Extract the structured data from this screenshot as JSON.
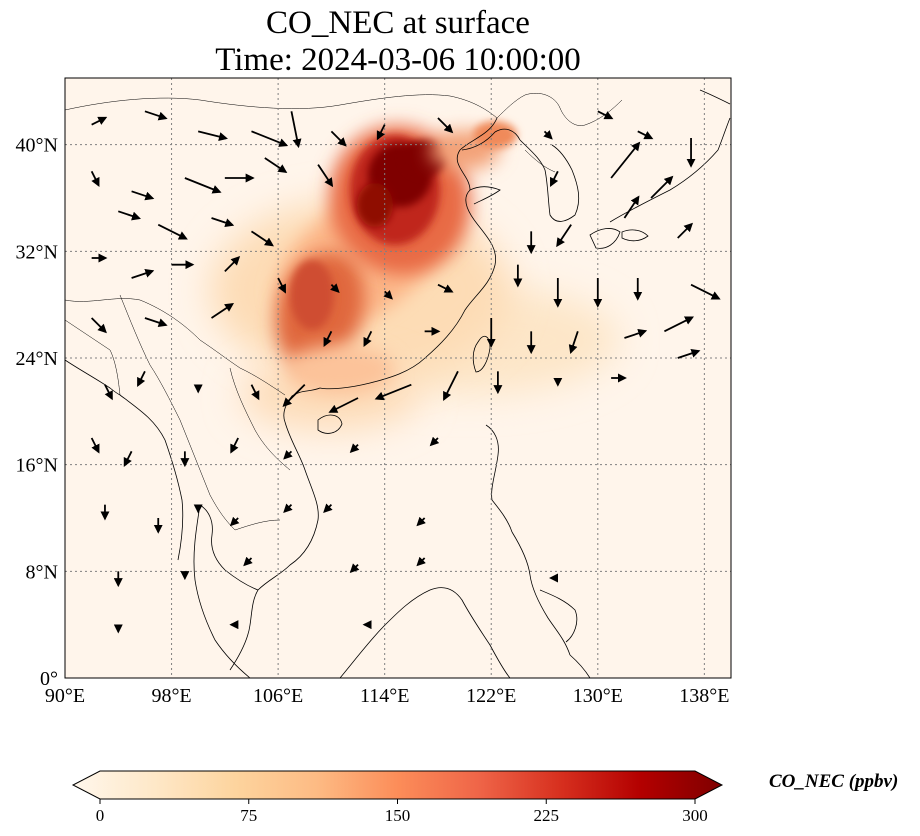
{
  "title": {
    "line1": "CO_NEC at surface",
    "line2": "Time: 2024-03-06 10:00:00"
  },
  "map": {
    "lon_range": [
      90,
      140
    ],
    "lat_range": [
      0,
      45
    ],
    "x_ticks": [
      {
        "value": 90,
        "label": "90°E"
      },
      {
        "value": 98,
        "label": "98°E"
      },
      {
        "value": 106,
        "label": "106°E"
      },
      {
        "value": 114,
        "label": "114°E"
      },
      {
        "value": 122,
        "label": "122°E"
      },
      {
        "value": 130,
        "label": "130°E"
      },
      {
        "value": 138,
        "label": "138°E"
      }
    ],
    "y_ticks": [
      {
        "value": 0,
        "label": "0°"
      },
      {
        "value": 8,
        "label": "8°N"
      },
      {
        "value": 16,
        "label": "16°N"
      },
      {
        "value": 24,
        "label": "24°N"
      },
      {
        "value": 32,
        "label": "32°N"
      },
      {
        "value": 40,
        "label": "40°N"
      }
    ],
    "gridlines": true,
    "background_color": "#fff5eb",
    "coastline_color": "#000000"
  },
  "colorbar": {
    "label": "CO_NEC (ppbv)",
    "min": 0,
    "max": 300,
    "ticks": [
      {
        "value": 0,
        "label": "0"
      },
      {
        "value": 75,
        "label": "75"
      },
      {
        "value": 150,
        "label": "150"
      },
      {
        "value": 225,
        "label": "225"
      },
      {
        "value": 300,
        "label": "300"
      }
    ],
    "colormap": "OrRd",
    "colors": [
      "#fff7ec",
      "#fee8c8",
      "#fdd49e",
      "#fdbb84",
      "#fc8d59",
      "#ef6548",
      "#d7301f",
      "#b30000",
      "#7f0000"
    ],
    "extend": "both"
  },
  "concentration_regions": [
    {
      "name": "north-china-plain-core",
      "lon": 115.5,
      "lat": 37.8,
      "value": 300
    },
    {
      "name": "north-china-plain-outer",
      "lon": 115,
      "lat": 37,
      "value": 220
    },
    {
      "name": "central-china-band",
      "lon": 112,
      "lat": 32,
      "value": 150
    },
    {
      "name": "sichuan-hunan",
      "lon": 109,
      "lat": 28.5,
      "value": 190
    },
    {
      "name": "south-china",
      "lon": 109,
      "lat": 23.5,
      "value": 90
    },
    {
      "name": "east-china-sea-plume",
      "lon": 126,
      "lat": 26,
      "value": 50
    },
    {
      "name": "bohai-coast",
      "lon": 120,
      "lat": 40.5,
      "value": 130
    }
  ],
  "wind_vectors": [
    {
      "lon": 92,
      "lat": 41.5,
      "u": 2,
      "v": 1
    },
    {
      "lon": 96,
      "lat": 42.5,
      "u": 3,
      "v": -1
    },
    {
      "lon": 100,
      "lat": 41,
      "u": 4,
      "v": -1
    },
    {
      "lon": 104,
      "lat": 41,
      "u": 5,
      "v": -2
    },
    {
      "lon": 107,
      "lat": 42.5,
      "u": 1,
      "v": -5
    },
    {
      "lon": 110,
      "lat": 41,
      "u": 2,
      "v": -2
    },
    {
      "lon": 114,
      "lat": 41.5,
      "u": -1,
      "v": -2
    },
    {
      "lon": 118,
      "lat": 42,
      "u": 2,
      "v": -2
    },
    {
      "lon": 126,
      "lat": 41,
      "u": 1,
      "v": -1
    },
    {
      "lon": 130,
      "lat": 42.5,
      "u": 2,
      "v": -1
    },
    {
      "lon": 133,
      "lat": 41,
      "u": 2,
      "v": -1
    },
    {
      "lon": 137,
      "lat": 40.5,
      "u": 0,
      "v": -4
    },
    {
      "lon": 92,
      "lat": 38,
      "u": 1,
      "v": -2
    },
    {
      "lon": 95,
      "lat": 36.5,
      "u": 3,
      "v": -1
    },
    {
      "lon": 99,
      "lat": 37.5,
      "u": 5,
      "v": -2
    },
    {
      "lon": 102,
      "lat": 37.5,
      "u": 4,
      "v": 0
    },
    {
      "lon": 105,
      "lat": 39,
      "u": 3,
      "v": -2
    },
    {
      "lon": 109,
      "lat": 38.5,
      "u": 2,
      "v": -3
    },
    {
      "lon": 127,
      "lat": 38,
      "u": -1,
      "v": -2
    },
    {
      "lon": 131,
      "lat": 37.5,
      "u": 4,
      "v": 5
    },
    {
      "lon": 134,
      "lat": 36,
      "u": 3,
      "v": 3
    },
    {
      "lon": 94,
      "lat": 35,
      "u": 3,
      "v": -1
    },
    {
      "lon": 97,
      "lat": 34,
      "u": 4,
      "v": -2
    },
    {
      "lon": 101,
      "lat": 34.5,
      "u": 3,
      "v": -1
    },
    {
      "lon": 104,
      "lat": 33.5,
      "u": 3,
      "v": -2
    },
    {
      "lon": 125,
      "lat": 33.5,
      "u": 0,
      "v": -3
    },
    {
      "lon": 128,
      "lat": 34,
      "u": -2,
      "v": -3
    },
    {
      "lon": 132,
      "lat": 34.5,
      "u": 2,
      "v": 3
    },
    {
      "lon": 136,
      "lat": 33,
      "u": 2,
      "v": 2
    },
    {
      "lon": 92,
      "lat": 31.5,
      "u": 2,
      "v": 0
    },
    {
      "lon": 95,
      "lat": 30,
      "u": 3,
      "v": 1
    },
    {
      "lon": 98,
      "lat": 31,
      "u": 3,
      "v": 0
    },
    {
      "lon": 102,
      "lat": 30.5,
      "u": 2,
      "v": 2
    },
    {
      "lon": 106,
      "lat": 30,
      "u": 1,
      "v": -2
    },
    {
      "lon": 110,
      "lat": 29.5,
      "u": 1,
      "v": -1
    },
    {
      "lon": 114,
      "lat": 29,
      "u": 1,
      "v": -1
    },
    {
      "lon": 118,
      "lat": 29.5,
      "u": 2,
      "v": -1
    },
    {
      "lon": 124,
      "lat": 31,
      "u": 0,
      "v": -3
    },
    {
      "lon": 127,
      "lat": 30,
      "u": 0,
      "v": -4
    },
    {
      "lon": 130,
      "lat": 30,
      "u": 0,
      "v": -4
    },
    {
      "lon": 133,
      "lat": 30,
      "u": 0,
      "v": -3
    },
    {
      "lon": 137,
      "lat": 29.5,
      "u": 4,
      "v": -2
    },
    {
      "lon": 92,
      "lat": 27,
      "u": 2,
      "v": -2
    },
    {
      "lon": 96,
      "lat": 27,
      "u": 3,
      "v": -1
    },
    {
      "lon": 101,
      "lat": 27,
      "u": 3,
      "v": 2
    },
    {
      "lon": 110,
      "lat": 26,
      "u": -1,
      "v": -2
    },
    {
      "lon": 113,
      "lat": 26,
      "u": -1,
      "v": -2
    },
    {
      "lon": 117,
      "lat": 26,
      "u": 2,
      "v": 0
    },
    {
      "lon": 122,
      "lat": 27,
      "u": 0,
      "v": -4
    },
    {
      "lon": 125,
      "lat": 26,
      "u": 0,
      "v": -3
    },
    {
      "lon": 128.5,
      "lat": 26,
      "u": -1,
      "v": -3
    },
    {
      "lon": 132,
      "lat": 25.5,
      "u": 3,
      "v": 1
    },
    {
      "lon": 135,
      "lat": 26,
      "u": 4,
      "v": 2
    },
    {
      "lon": 93,
      "lat": 22,
      "u": 1,
      "v": -2
    },
    {
      "lon": 96,
      "lat": 23,
      "u": -1,
      "v": -2
    },
    {
      "lon": 100,
      "lat": 22,
      "u": 0,
      "v": -1
    },
    {
      "lon": 104,
      "lat": 22,
      "u": 1,
      "v": -2
    },
    {
      "lon": 108,
      "lat": 22,
      "u": -3,
      "v": -3
    },
    {
      "lon": 112,
      "lat": 21,
      "u": -4,
      "v": -2
    },
    {
      "lon": 116,
      "lat": 22,
      "u": -5,
      "v": -2
    },
    {
      "lon": 119.5,
      "lat": 23,
      "u": -2,
      "v": -4
    },
    {
      "lon": 122.5,
      "lat": 23,
      "u": 0,
      "v": -3
    },
    {
      "lon": 127,
      "lat": 22.5,
      "u": 0,
      "v": -1
    },
    {
      "lon": 131,
      "lat": 22.5,
      "u": 2,
      "v": 0
    },
    {
      "lon": 136,
      "lat": 24,
      "u": 3,
      "v": 1
    },
    {
      "lon": 92,
      "lat": 18,
      "u": 1,
      "v": -2
    },
    {
      "lon": 95,
      "lat": 17,
      "u": -1,
      "v": -2
    },
    {
      "lon": 99,
      "lat": 17,
      "u": 0,
      "v": -2
    },
    {
      "lon": 103,
      "lat": 18,
      "u": -1,
      "v": -2
    },
    {
      "lon": 107,
      "lat": 17,
      "u": -1,
      "v": -1
    },
    {
      "lon": 112,
      "lat": 17.5,
      "u": -1,
      "v": -1
    },
    {
      "lon": 118,
      "lat": 18,
      "u": -1,
      "v": -1
    },
    {
      "lon": 93,
      "lat": 13,
      "u": 0,
      "v": -2
    },
    {
      "lon": 97,
      "lat": 12,
      "u": 0,
      "v": -2
    },
    {
      "lon": 100,
      "lat": 13,
      "u": 0,
      "v": -1
    },
    {
      "lon": 103,
      "lat": 12,
      "u": -1,
      "v": -1
    },
    {
      "lon": 107,
      "lat": 13,
      "u": -1,
      "v": -1
    },
    {
      "lon": 110,
      "lat": 13,
      "u": -1,
      "v": -1
    },
    {
      "lon": 117,
      "lat": 12,
      "u": -1,
      "v": -1
    },
    {
      "lon": 94,
      "lat": 8,
      "u": 0,
      "v": -2
    },
    {
      "lon": 99,
      "lat": 8,
      "u": 0,
      "v": -1
    },
    {
      "lon": 104,
      "lat": 9,
      "u": -1,
      "v": -1
    },
    {
      "lon": 112,
      "lat": 8.5,
      "u": -1,
      "v": -1
    },
    {
      "lon": 117,
      "lat": 9,
      "u": -1,
      "v": -1
    },
    {
      "lon": 127,
      "lat": 7.5,
      "u": -1,
      "v": 0
    },
    {
      "lon": 94,
      "lat": 4,
      "u": 0,
      "v": -1
    },
    {
      "lon": 103,
      "lat": 4,
      "u": -1,
      "v": 0
    },
    {
      "lon": 113,
      "lat": 4,
      "u": -1,
      "v": 0
    }
  ]
}
